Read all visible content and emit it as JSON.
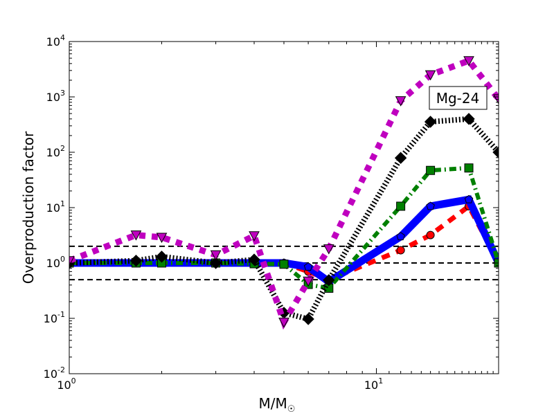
{
  "chart_data": {
    "type": "line",
    "title": "",
    "annotation": "Mg-24",
    "xlabel": "M/M",
    "xlabel_subscript": "☉",
    "ylabel": "Overproduction factor",
    "xscale": "log",
    "yscale": "log",
    "xlim": [
      1,
      25
    ],
    "ylim": [
      0.01,
      10000
    ],
    "xticks": [
      {
        "base": "10",
        "exp": "0",
        "v": 1
      },
      {
        "base": "10",
        "exp": "1",
        "v": 10
      }
    ],
    "yticks": [
      {
        "base": "10",
        "exp": "-2",
        "v": 0.01
      },
      {
        "base": "10",
        "exp": "-1",
        "v": 0.1
      },
      {
        "base": "10",
        "exp": "0",
        "v": 1
      },
      {
        "base": "10",
        "exp": "1",
        "v": 10
      },
      {
        "base": "10",
        "exp": "2",
        "v": 100
      },
      {
        "base": "10",
        "exp": "3",
        "v": 1000
      },
      {
        "base": "10",
        "exp": "4",
        "v": 10000
      }
    ],
    "reference_lines": [
      2,
      1,
      0.5
    ],
    "x": [
      1,
      1.65,
      2,
      3,
      4,
      5,
      6,
      7,
      12,
      15,
      20,
      25
    ],
    "series": [
      {
        "name": "red",
        "color": "#ff0000",
        "dash": "12,10",
        "width": 7,
        "marker": "circle",
        "values": [
          1,
          1,
          1,
          1,
          1,
          1,
          0.7,
          0.5,
          1.7,
          3.2,
          10.6,
          1
        ]
      },
      {
        "name": "blue",
        "color": "#0000ff",
        "dash": "",
        "width": 11,
        "marker": "pentagon",
        "values": [
          1,
          1,
          1,
          1,
          1,
          1,
          0.85,
          0.46,
          3.0,
          10.6,
          14,
          1
        ]
      },
      {
        "name": "green",
        "color": "#008000",
        "dash": "10,5,2,5",
        "width": 6,
        "marker": "square",
        "values": [
          1,
          1,
          1,
          1,
          0.97,
          0.95,
          0.41,
          0.35,
          10.6,
          47,
          52,
          1
        ]
      },
      {
        "name": "black",
        "color": "#000000",
        "dash": "2,3",
        "width": 8,
        "marker": "diamond",
        "values": [
          1,
          1.1,
          1.3,
          1,
          1.15,
          0.126,
          0.097,
          0.49,
          79,
          355,
          400,
          100
        ]
      },
      {
        "name": "magenta",
        "color": "#bf00bf",
        "dash": "9,9",
        "width": 9,
        "marker": "triangle-down",
        "values": [
          1.1,
          3.2,
          2.9,
          1.4,
          3.1,
          0.085,
          0.47,
          1.8,
          850,
          2500,
          4500,
          920
        ]
      }
    ]
  }
}
